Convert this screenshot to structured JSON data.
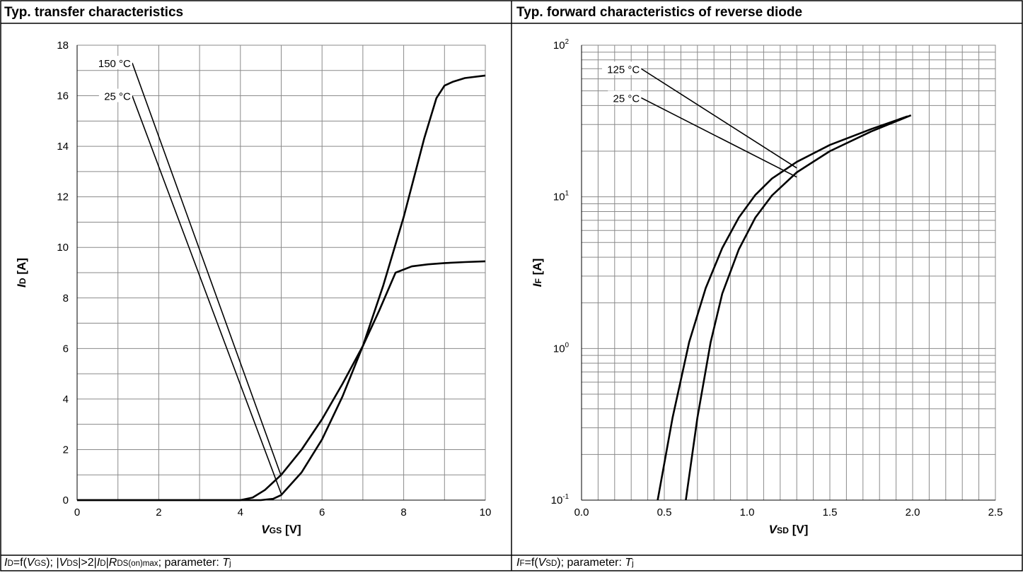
{
  "panels": [
    {
      "title": "Typ. transfer characteristics",
      "caption": [
        {
          "t": "I",
          "i": true
        },
        {
          "t": "D",
          "sub": true
        },
        {
          "t": "=f("
        },
        {
          "t": "V",
          "i": true
        },
        {
          "t": "GS",
          "sub": true
        },
        {
          "t": "); |"
        },
        {
          "t": "V",
          "i": true
        },
        {
          "t": "DS",
          "sub": true
        },
        {
          "t": "|>2|"
        },
        {
          "t": "I",
          "i": true
        },
        {
          "t": "D",
          "sub": true
        },
        {
          "t": "|"
        },
        {
          "t": "R",
          "i": true
        },
        {
          "t": "DS(on)max",
          "sub": true
        },
        {
          "t": "; parameter: "
        },
        {
          "t": "T",
          "i": true
        },
        {
          "t": "j",
          "sub": true
        }
      ]
    },
    {
      "title": "Typ. forward characteristics of reverse diode",
      "caption": [
        {
          "t": "I",
          "i": true
        },
        {
          "t": "F",
          "sub": true
        },
        {
          "t": "=f("
        },
        {
          "t": "V",
          "i": true
        },
        {
          "t": "SD",
          "sub": true
        },
        {
          "t": "); parameter: "
        },
        {
          "t": "T",
          "i": true
        },
        {
          "t": "j",
          "sub": true
        }
      ]
    }
  ],
  "chart_data": [
    {
      "type": "line",
      "title": "Typ. transfer characteristics",
      "xlabel": {
        "main": "V",
        "sub": "GS",
        "unit": " [V]"
      },
      "ylabel": {
        "main": "I",
        "sub": "D",
        "unit": " [A]"
      },
      "xlim": [
        0,
        10
      ],
      "ylim": [
        0,
        18
      ],
      "xticks": [
        "0",
        "2",
        "4",
        "6",
        "8",
        "10"
      ],
      "yticks": [
        "0",
        "2",
        "4",
        "6",
        "8",
        "10",
        "12",
        "14",
        "16",
        "18"
      ],
      "grid": true,
      "series": [
        {
          "name": "150 °C",
          "x": [
            0,
            4.0,
            4.3,
            4.6,
            5.0,
            5.5,
            6.0,
            6.5,
            7.0,
            7.4,
            7.8,
            8.2,
            8.6,
            9.0,
            9.5,
            10.0
          ],
          "y": [
            0,
            0,
            0.1,
            0.4,
            1.0,
            2.0,
            3.2,
            4.6,
            6.1,
            7.5,
            9.0,
            9.25,
            9.33,
            9.38,
            9.42,
            9.45
          ]
        },
        {
          "name": "25 °C",
          "x": [
            0,
            4.5,
            4.8,
            5.0,
            5.5,
            6.0,
            6.5,
            7.0,
            7.5,
            8.0,
            8.5,
            8.8,
            9.0,
            9.2,
            9.5,
            10.0
          ],
          "y": [
            0,
            0,
            0.05,
            0.2,
            1.1,
            2.4,
            4.1,
            6.1,
            8.5,
            11.2,
            14.3,
            15.9,
            16.4,
            16.55,
            16.7,
            16.8
          ]
        }
      ],
      "annotations": [
        {
          "text": "150 °C",
          "from": [
            1.35,
            17.3
          ],
          "to": [
            5.0,
            0.95
          ]
        },
        {
          "text": "25 °C",
          "from": [
            1.35,
            16.0
          ],
          "to": [
            5.0,
            0.25
          ]
        }
      ]
    },
    {
      "type": "line",
      "title": "Typ. forward characteristics of reverse diode",
      "xlabel": {
        "main": "V",
        "sub": "SD",
        "unit": " [V]"
      },
      "ylabel": {
        "main": "I",
        "sub": "F",
        "unit": " [A]"
      },
      "xlim": [
        0,
        2.5
      ],
      "ylim": [
        0.1,
        100
      ],
      "yscale": "log",
      "xticks": [
        "0.0",
        "0.5",
        "1.0",
        "1.5",
        "2.0",
        "2.5"
      ],
      "yticks": [
        {
          "base": "10",
          "exp": "-1"
        },
        {
          "base": "10",
          "exp": "0"
        },
        {
          "base": "10",
          "exp": "1"
        },
        {
          "base": "10",
          "exp": "2"
        }
      ],
      "grid": true,
      "series": [
        {
          "name": "125 °C",
          "x": [
            0.46,
            0.55,
            0.65,
            0.75,
            0.85,
            0.95,
            1.05,
            1.15,
            1.3,
            1.5,
            1.75,
            1.97
          ],
          "y": [
            0.1,
            0.35,
            1.1,
            2.5,
            4.6,
            7.3,
            10.3,
            13.2,
            17.0,
            22.0,
            28.0,
            34.0
          ]
        },
        {
          "name": "25 °C",
          "x": [
            0.63,
            0.7,
            0.78,
            0.85,
            0.95,
            1.05,
            1.15,
            1.3,
            1.5,
            1.75,
            1.99
          ],
          "y": [
            0.1,
            0.35,
            1.1,
            2.3,
            4.5,
            7.3,
            10.2,
            14.5,
            20.0,
            27.0,
            34.5
          ]
        }
      ],
      "annotations": [
        {
          "text": "125 °C",
          "from": [
            0.36,
            70
          ],
          "to": [
            1.3,
            15.5
          ]
        },
        {
          "text": "25 °C",
          "from": [
            0.36,
            45
          ],
          "to": [
            1.3,
            13.5
          ]
        }
      ]
    }
  ]
}
